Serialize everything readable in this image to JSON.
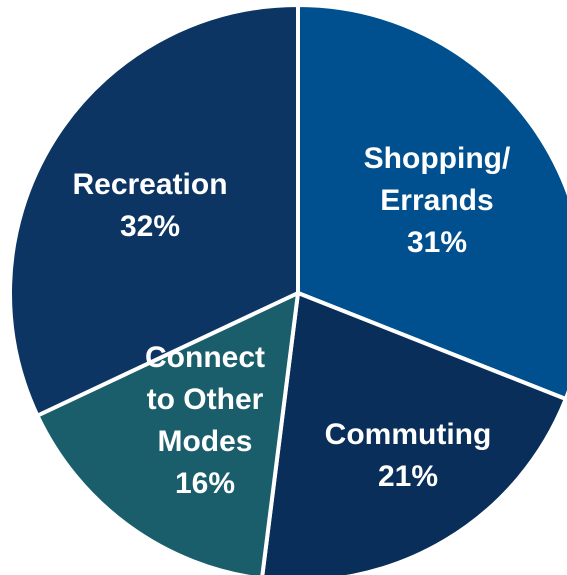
{
  "chart_data": {
    "type": "pie",
    "categories": [
      [
        "Shopping/",
        "Errands"
      ],
      [
        "Commuting"
      ],
      [
        "Connect",
        "to Other",
        "Modes"
      ],
      [
        "Recreation"
      ]
    ],
    "values": [
      31,
      21,
      16,
      32
    ],
    "value_labels": [
      "31%",
      "21%",
      "16%",
      "32%"
    ],
    "colors": [
      "#00508f",
      "#0a2e5a",
      "#1a5e6c",
      "#0c3563"
    ]
  }
}
